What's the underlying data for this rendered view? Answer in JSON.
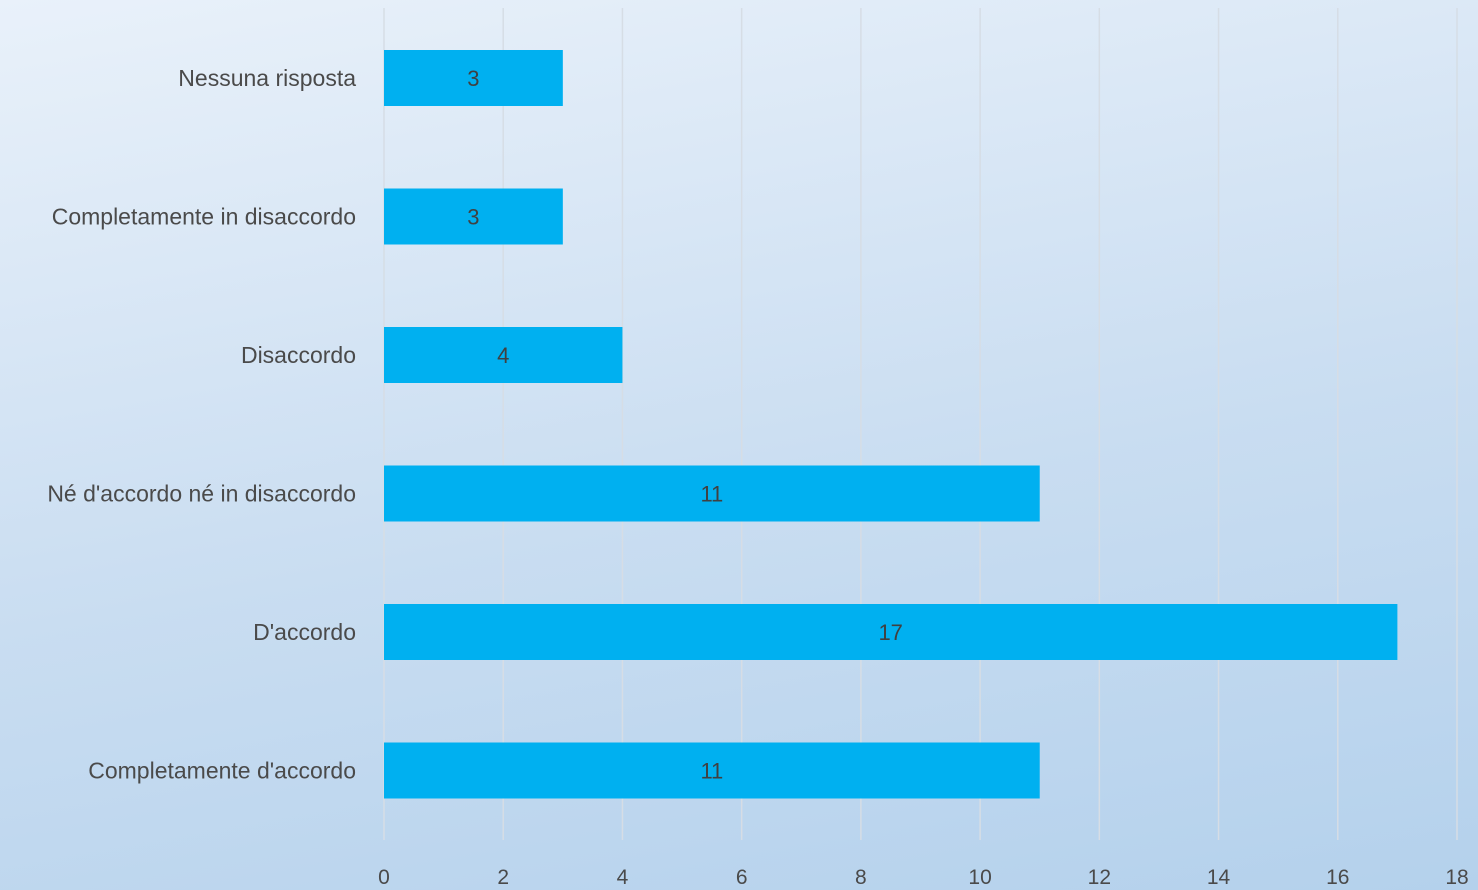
{
  "chart_data": {
    "type": "bar",
    "orientation": "horizontal",
    "categories": [
      "Nessuna risposta",
      "Completamente in disaccordo",
      "Disaccordo",
      "Né d'accordo né in disaccordo",
      "D'accordo",
      "Completamente d'accordo"
    ],
    "values": [
      3,
      3,
      4,
      11,
      17,
      11
    ],
    "xlim": [
      0,
      18
    ],
    "xticks": [
      0,
      2,
      4,
      6,
      8,
      10,
      12,
      14,
      16,
      18
    ],
    "title": "",
    "xlabel": "",
    "ylabel": "",
    "grid": "vertical",
    "data_labels": true,
    "legend": "none",
    "colors": {
      "bar": "#00b0f0",
      "grid": "#d6dde5",
      "text": "#4a4a4a"
    }
  }
}
